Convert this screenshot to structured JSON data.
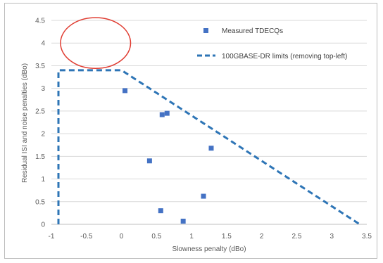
{
  "chart_data": {
    "type": "scatter",
    "xlabel": "Slowness penalty (dBo)",
    "ylabel": "Residual ISI and noise penalties (dBo)",
    "xlim": [
      -1,
      3.5
    ],
    "ylim": [
      0,
      4.5
    ],
    "x_ticks": [
      -1,
      -0.5,
      0,
      0.5,
      1,
      1.5,
      2,
      2.5,
      3,
      3.5
    ],
    "x_tick_labels": [
      "-1",
      "-0.5",
      "0",
      "0.5",
      "1",
      "1.5",
      "2",
      "2.5",
      "3",
      "3.5"
    ],
    "y_ticks": [
      0,
      0.5,
      1,
      1.5,
      2,
      2.5,
      3,
      3.5,
      4,
      4.5
    ],
    "y_tick_labels": [
      "0",
      "0.5",
      "1",
      "1.5",
      "2",
      "2.5",
      "3",
      "3.5",
      "4",
      "4.5"
    ],
    "grid": "horizontal",
    "legend_position": "top-right",
    "series": [
      {
        "name": "Measured TDECQs",
        "kind": "markers",
        "marker": "square",
        "color": "#4472C4",
        "points": [
          {
            "x": 0.05,
            "y": 2.95
          },
          {
            "x": 0.58,
            "y": 2.42
          },
          {
            "x": 0.65,
            "y": 2.45
          },
          {
            "x": 0.4,
            "y": 1.4
          },
          {
            "x": 1.28,
            "y": 1.68
          },
          {
            "x": 1.17,
            "y": 0.62
          },
          {
            "x": 0.56,
            "y": 0.3
          },
          {
            "x": 0.88,
            "y": 0.07
          }
        ]
      },
      {
        "name": "100GBASE-DR limits (removing top-left)",
        "kind": "dashed-line",
        "color": "#2E75B6",
        "points": [
          {
            "x": -0.9,
            "y": 0
          },
          {
            "x": -0.9,
            "y": 3.4
          },
          {
            "x": 0,
            "y": 3.4
          },
          {
            "x": 3.4,
            "y": 0
          }
        ]
      }
    ],
    "annotations": [
      {
        "shape": "ellipse",
        "color": "#E03C31",
        "center_x": -0.37,
        "center_y": 4.0,
        "radius_x": 0.5,
        "radius_y": 0.56
      }
    ]
  }
}
